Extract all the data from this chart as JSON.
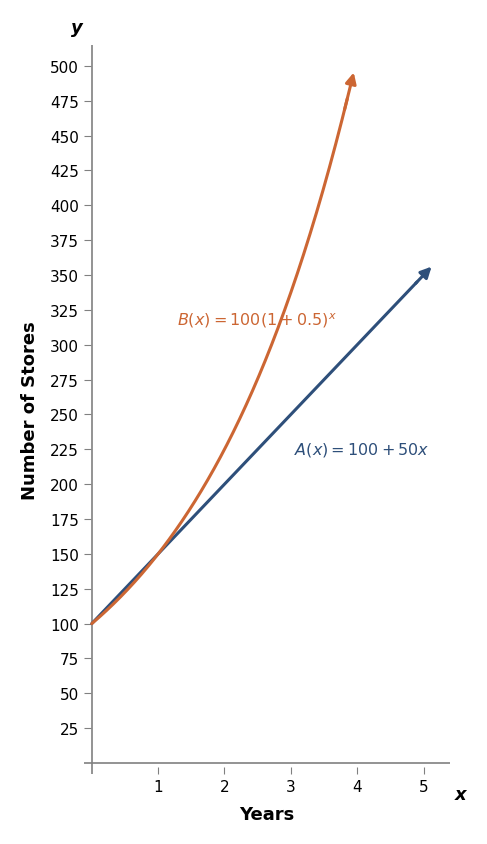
{
  "title": "",
  "xlabel": "Years",
  "ylabel": "Number of Stores",
  "x_axis_label": "x",
  "y_axis_label": "y",
  "xlim": [
    0,
    5.4
  ],
  "ylim": [
    0,
    515
  ],
  "xticks": [
    1,
    2,
    3,
    4,
    5
  ],
  "yticks": [
    25,
    50,
    75,
    100,
    125,
    150,
    175,
    200,
    225,
    250,
    275,
    300,
    325,
    350,
    375,
    400,
    425,
    450,
    475,
    500
  ],
  "A_color": "#2e4f7a",
  "B_color": "#cc6633",
  "A_label": "$A(x) = 100 + 50x$",
  "B_label": "$B(x) = 100(1 + 0.5)^x$",
  "A_x_end": 4.9,
  "B_x_end": 3.85,
  "background_color": "#ffffff",
  "font_size": 13,
  "axis_color": "#808080"
}
